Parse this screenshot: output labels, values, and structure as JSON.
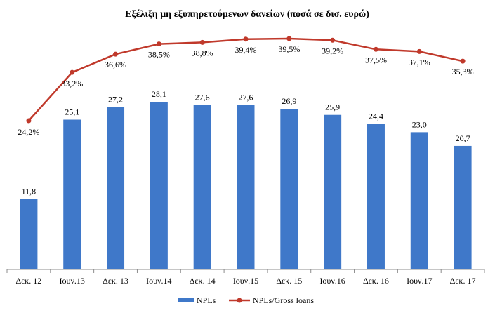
{
  "chart_data": {
    "type": "bar",
    "title": "Εξέλιξη μη εξυπηρετούμενων δανείων (ποσά σε δισ. ευρώ)",
    "categories": [
      "Δεκ. 12",
      "Ιουν.13",
      "Δεκ. 13",
      "Ιουν.14",
      "Δεκ. 14",
      "Ιουν.15",
      "Δεκ. 15",
      "Ιουν.16",
      "Δεκ. 16",
      "Ιουν.17",
      "Δεκ. 17"
    ],
    "series": [
      {
        "name": "NPLs",
        "type": "bar",
        "values": [
          11.8,
          25.1,
          27.2,
          28.1,
          27.6,
          27.6,
          26.9,
          25.9,
          24.4,
          23.0,
          20.7
        ],
        "labels": [
          "11,8",
          "25,1",
          "27,2",
          "28,1",
          "27,6",
          "27,6",
          "26,9",
          "25,9",
          "24,4",
          "23,0",
          "20,7"
        ],
        "color": "#3F78C9"
      },
      {
        "name": "NPLs/Gross loans",
        "type": "line",
        "values": [
          24.2,
          33.2,
          36.6,
          38.5,
          38.8,
          39.4,
          39.5,
          39.2,
          37.5,
          37.1,
          35.3
        ],
        "labels": [
          "24,2%",
          "33,2%",
          "36,6%",
          "38,5%",
          "38,8%",
          "39,4%",
          "39,5%",
          "39,2%",
          "37,5%",
          "37,1%",
          "35,3%"
        ],
        "color": "#C0392B"
      }
    ],
    "bar_axis_range": [
      0,
      40
    ],
    "line_axis_range": [
      0,
      42
    ],
    "grid": false,
    "legend_position": "bottom"
  }
}
